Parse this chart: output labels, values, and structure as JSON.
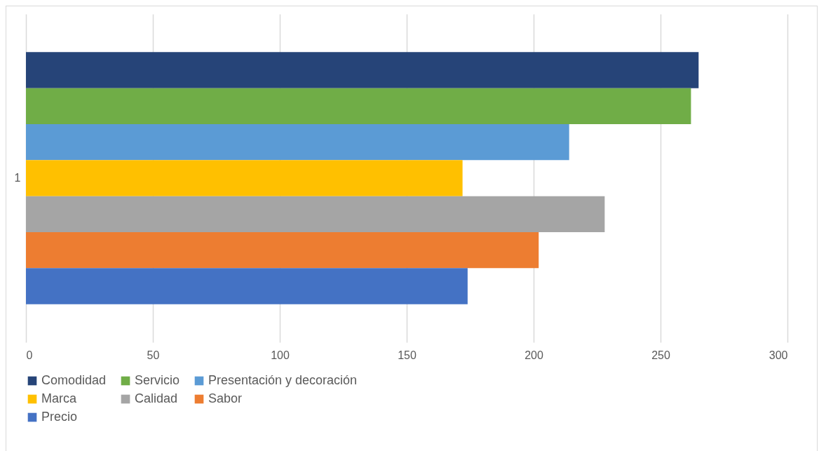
{
  "chart_data": {
    "type": "bar",
    "orientation": "horizontal",
    "categories": [
      "1"
    ],
    "series": [
      {
        "name": "Comodidad",
        "color": "#264478",
        "values": [
          265
        ]
      },
      {
        "name": "Servicio",
        "color": "#70ad47",
        "values": [
          262
        ]
      },
      {
        "name": "Presentación y decoración",
        "color": "#5b9bd5",
        "values": [
          214
        ]
      },
      {
        "name": "Marca",
        "color": "#ffc000",
        "values": [
          172
        ]
      },
      {
        "name": "Calidad",
        "color": "#a5a5a5",
        "values": [
          228
        ]
      },
      {
        "name": "Sabor",
        "color": "#ed7d31",
        "values": [
          202
        ]
      },
      {
        "name": "Precio",
        "color": "#4472c4",
        "values": [
          174
        ]
      }
    ],
    "xlim": [
      0,
      300
    ],
    "xticks": [
      0,
      50,
      100,
      150,
      200,
      250,
      300
    ],
    "grid": "x",
    "legend": "bottom"
  }
}
